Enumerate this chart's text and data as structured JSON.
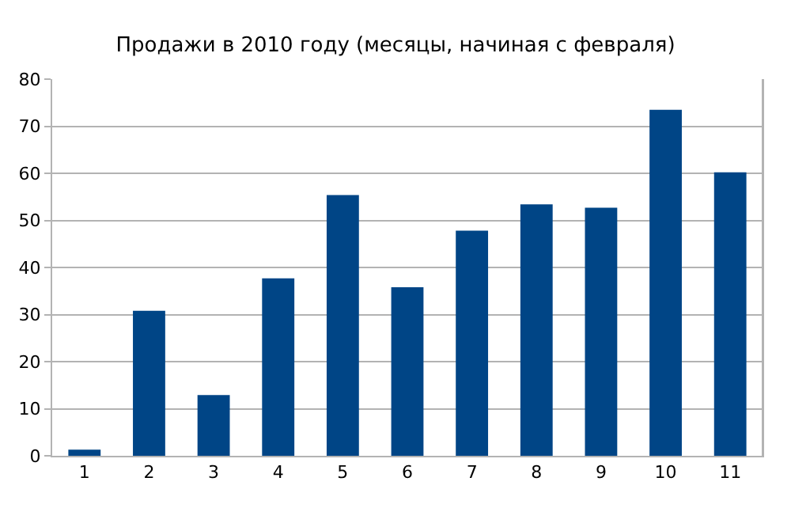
{
  "chart_data": {
    "type": "bar",
    "title": "Продажи в 2010 году (месяцы, начиная с февраля)",
    "categories": [
      "1",
      "2",
      "3",
      "4",
      "5",
      "6",
      "7",
      "8",
      "9",
      "10",
      "11"
    ],
    "values": [
      1.3,
      30.8,
      12.9,
      37.7,
      55.4,
      35.8,
      47.8,
      53.4,
      52.7,
      73.5,
      60.2
    ],
    "color": "#004586",
    "ylim": [
      0,
      80
    ],
    "yticks": [
      0,
      10,
      20,
      30,
      40,
      50,
      60,
      70,
      80
    ],
    "grid": "y",
    "legend": false
  }
}
